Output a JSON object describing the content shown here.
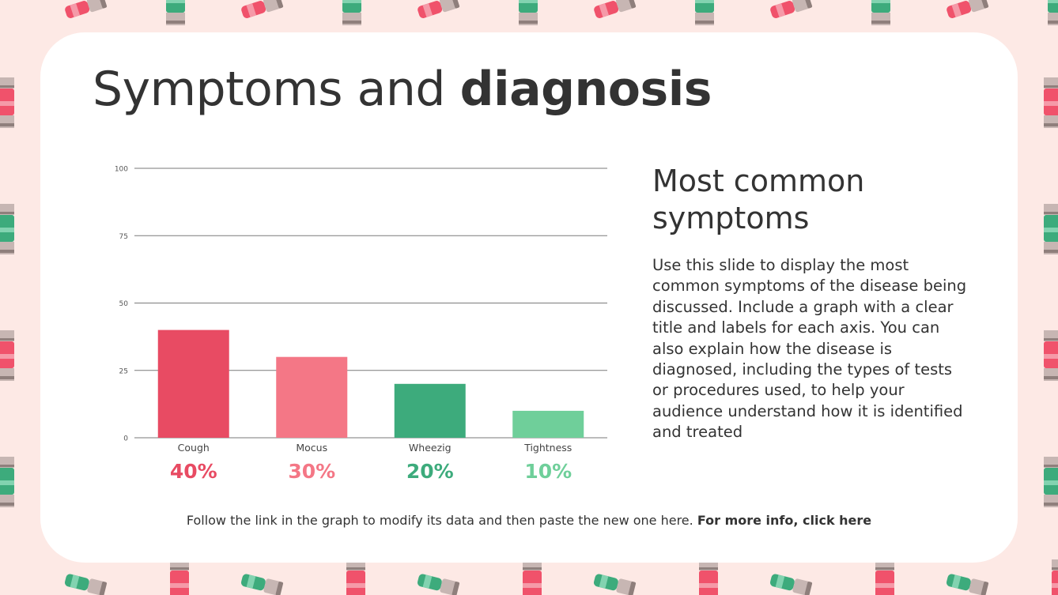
{
  "slide": {
    "title_regular": "Symptoms and ",
    "title_bold": "diagnosis",
    "subtitle": "Most common symptoms",
    "body": "Use this slide to display the most common symptoms of the disease being discussed. Include a graph with a clear title and labels for each axis. You can also explain how the disease is diagnosed, including the types of tests or procedures used, to help your audience understand how it is identified and treated",
    "footer_text": "Follow the link in the graph to modify its data and then paste the new one here. ",
    "footer_link": "For more info, click here"
  },
  "chart_data": {
    "type": "bar",
    "categories": [
      "Cough",
      "Mocus",
      "Wheezig",
      "Tightness"
    ],
    "values": [
      40,
      30,
      20,
      10
    ],
    "percent_labels": [
      "40%",
      "30%",
      "20%",
      "10%"
    ],
    "bar_colors": [
      "#e84b63",
      "#f47786",
      "#3dab7c",
      "#6fcf9a"
    ],
    "ylim": [
      0,
      100
    ],
    "yticks": [
      0,
      25,
      50,
      75,
      100
    ],
    "grid": true,
    "title": "",
    "xlabel": "",
    "ylabel": ""
  },
  "colors": {
    "background": "#fde9e5",
    "card": "#ffffff",
    "text": "#333333",
    "pattern_pink": "#f0526b",
    "pattern_green": "#3dab7c"
  },
  "decorations": {
    "pattern_icon": "inhaler-icon"
  }
}
